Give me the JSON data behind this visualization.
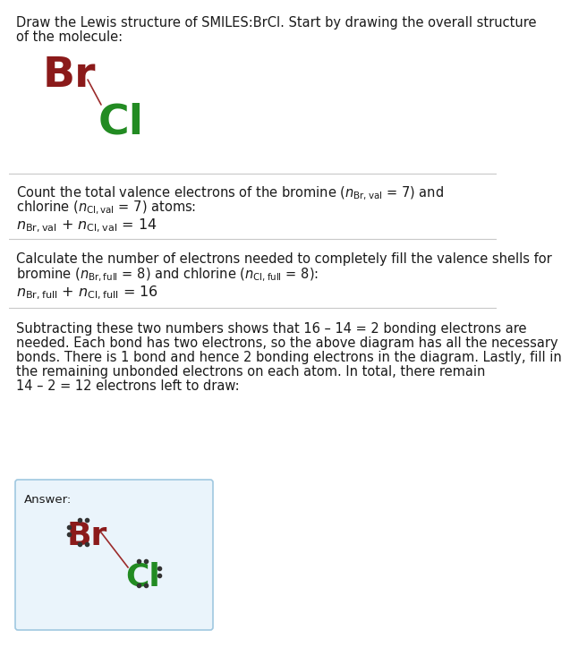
{
  "br_color": "#8B1A1A",
  "cl_color": "#228B22",
  "bond_color": "#9B2B2B",
  "dot_color": "#333333",
  "answer_bg": "#EAF4FB",
  "answer_border": "#A0C8E0",
  "bg_color": "#FFFFFF",
  "separator_color": "#C8C8C8",
  "text_color": "#1a1a1a",
  "title_line1": "Draw the Lewis structure of SMILES:BrCl. Start by drawing the overall structure",
  "title_line2": "of the molecule:",
  "s2_line1": "Count the total valence electrons of the bromine (",
  "s3_line1": "Calculate the number of electrons needed to completely fill the valence shells for",
  "s4_lines": [
    "Subtracting these two numbers shows that 16 – 14 = 2 bonding electrons are",
    "needed. Each bond has two electrons, so the above diagram has all the necessary",
    "bonds. There is 1 bond and hence 2 bonding electrons in the diagram. Lastly, fill in",
    "the remaining unbonded electrons on each atom. In total, there remain",
    "14 – 2 = 12 electrons left to draw:"
  ]
}
